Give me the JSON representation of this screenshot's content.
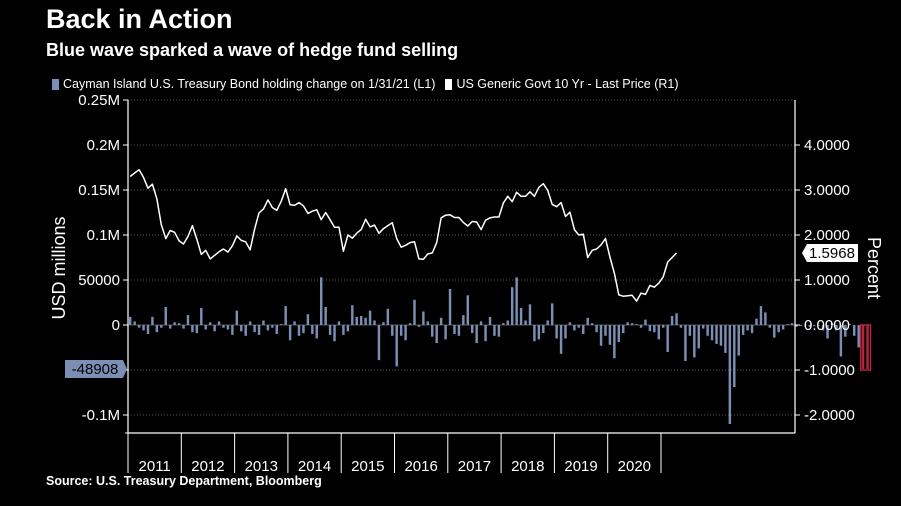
{
  "header": {
    "title": "Back in Action",
    "subtitle": "Blue wave sparked a wave of hedge fund selling"
  },
  "footer": {
    "source": "Source: U.S. Treasury Department, Bloomberg"
  },
  "colors": {
    "background": "#000000",
    "bars": "#7b8fb5",
    "highlight_bar": "#b3263f",
    "line": "#ffffff",
    "grid": "#555555"
  },
  "chart_data": {
    "type": "bar+line",
    "title": "Back in Action",
    "subtitle": "Blue wave sparked a wave of hedge fund selling",
    "ylabel_left": "USD millions",
    "ylabel_right": "Percent",
    "ylim_left": [
      -0.12,
      0.25
    ],
    "ylim_right": [
      -2.4,
      5.0
    ],
    "left_ticks": [
      {
        "v": 0.25,
        "label": "0.25M"
      },
      {
        "v": 0.2,
        "label": "0.2M"
      },
      {
        "v": 0.15,
        "label": "0.15M"
      },
      {
        "v": 0.1,
        "label": "0.1M"
      },
      {
        "v": 0.05,
        "label": "50000"
      },
      {
        "v": 0,
        "label": "0"
      },
      {
        "v": -0.05,
        "label": ""
      },
      {
        "v": -0.1,
        "label": "-0.1M"
      }
    ],
    "right_ticks": [
      {
        "v": 4,
        "label": "4.0000"
      },
      {
        "v": 3,
        "label": "3.0000"
      },
      {
        "v": 2,
        "label": "2.0000"
      },
      {
        "v": 1,
        "label": "1.0000"
      },
      {
        "v": 0,
        "label": "0.0000"
      },
      {
        "v": -1,
        "label": "-1.0000"
      },
      {
        "v": -2,
        "label": "-2.0000"
      }
    ],
    "years": [
      "2011",
      "2012",
      "2013",
      "2014",
      "2015",
      "2016",
      "2017",
      "2018",
      "2019",
      "2020"
    ],
    "start": "2011-01",
    "series": [
      {
        "name": "Cayman Island U.S. Treasury Bond holding change on 1/31/21 (L1)",
        "type": "bar",
        "values": [
          0.009,
          0.004,
          -0.003,
          -0.006,
          -0.01,
          0.009,
          -0.008,
          -0.003,
          0.02,
          -0.004,
          0.003,
          0.002,
          -0.004,
          0.011,
          -0.008,
          -0.009,
          0.019,
          -0.005,
          0.003,
          -0.007,
          0.004,
          -0.003,
          -0.005,
          -0.011,
          0.016,
          -0.007,
          -0.012,
          0.004,
          -0.008,
          -0.011,
          0.005,
          -0.006,
          -0.003,
          -0.01,
          0.001,
          0.021,
          -0.017,
          0.004,
          -0.012,
          -0.009,
          0.012,
          -0.01,
          -0.015,
          0.053,
          0.02,
          -0.011,
          -0.018,
          0.004,
          -0.011,
          -0.007,
          0.022,
          0.009,
          0.01,
          0.008,
          0.016,
          0.005,
          -0.039,
          0.003,
          0.018,
          -0.012,
          -0.046,
          -0.012,
          -0.017,
          0.002,
          0.028,
          -0.002,
          0.015,
          0.004,
          -0.013,
          -0.02,
          0.008,
          -0.016,
          0.04,
          -0.01,
          -0.012,
          0.011,
          0.033,
          -0.009,
          -0.02,
          0.004,
          -0.018,
          0.009,
          -0.012,
          -0.013,
          0.002,
          0.005,
          0.042,
          0.053,
          0.019,
          0.005,
          0.023,
          -0.018,
          -0.016,
          -0.009,
          0.005,
          0.024,
          -0.015,
          -0.032,
          -0.015,
          0.003,
          -0.006,
          -0.003,
          -0.01,
          0.008,
          0.002,
          -0.008,
          -0.023,
          -0.012,
          -0.022,
          -0.037,
          -0.019,
          -0.009,
          0.003,
          0.002,
          0.001,
          -0.003,
          0.006,
          -0.007,
          -0.008,
          -0.016,
          -0.003,
          -0.03,
          0.01,
          0.013,
          -0.003,
          -0.04,
          -0.012,
          -0.036,
          -0.026,
          -0.004,
          -0.012,
          -0.017,
          -0.021,
          -0.023,
          -0.031,
          -0.11,
          -0.069,
          -0.034,
          -0.011,
          -0.006,
          -0.009,
          0.007,
          0.021,
          0.014,
          -0.003,
          -0.014,
          -0.008,
          -0.005,
          0.001,
          0.002,
          -0.002,
          -0.001,
          0.0,
          -0.002,
          -0.001,
          0.0,
          -0.006,
          -0.015,
          0.002,
          -0.006,
          -0.035,
          -0.013,
          0.001,
          -0.012,
          -0.025,
          -0.048909,
          -0.048908
        ]
      },
      {
        "name": "US Generic Govt 10 Yr - Last Price (R1)",
        "type": "line",
        "values": [
          3.3,
          3.38,
          3.45,
          3.28,
          3.04,
          3.13,
          2.8,
          2.23,
          1.92,
          2.1,
          2.06,
          1.87,
          1.8,
          1.97,
          2.21,
          1.91,
          1.57,
          1.66,
          1.47,
          1.55,
          1.63,
          1.69,
          1.62,
          1.76,
          1.98,
          1.88,
          1.85,
          1.67,
          2.13,
          2.49,
          2.58,
          2.78,
          2.61,
          2.55,
          2.75,
          3.03,
          2.67,
          2.66,
          2.72,
          2.65,
          2.48,
          2.53,
          2.56,
          2.34,
          2.5,
          2.34,
          2.17,
          2.17,
          1.64,
          2.0,
          1.93,
          2.04,
          2.12,
          2.35,
          2.18,
          2.22,
          2.04,
          2.14,
          2.21,
          2.27,
          1.92,
          1.73,
          1.77,
          1.83,
          1.85,
          1.47,
          1.46,
          1.58,
          1.6,
          1.83,
          2.38,
          2.44,
          2.45,
          2.39,
          2.39,
          2.28,
          2.2,
          2.3,
          2.29,
          2.12,
          2.33,
          2.38,
          2.4,
          2.4,
          2.71,
          2.86,
          2.74,
          2.95,
          2.86,
          2.86,
          2.96,
          2.86,
          3.06,
          3.14,
          2.99,
          2.68,
          2.63,
          2.72,
          2.41,
          2.51,
          2.12,
          2.0,
          2.02,
          1.5,
          1.66,
          1.69,
          1.78,
          1.92,
          1.51,
          1.15,
          0.67,
          0.64,
          0.65,
          0.66,
          0.53,
          0.71,
          0.68,
          0.88,
          0.84,
          0.93,
          1.07,
          1.4,
          1.5,
          1.6
        ]
      }
    ],
    "annotations": {
      "left_value_label": "-48908",
      "right_value_label": "1.5968"
    }
  }
}
